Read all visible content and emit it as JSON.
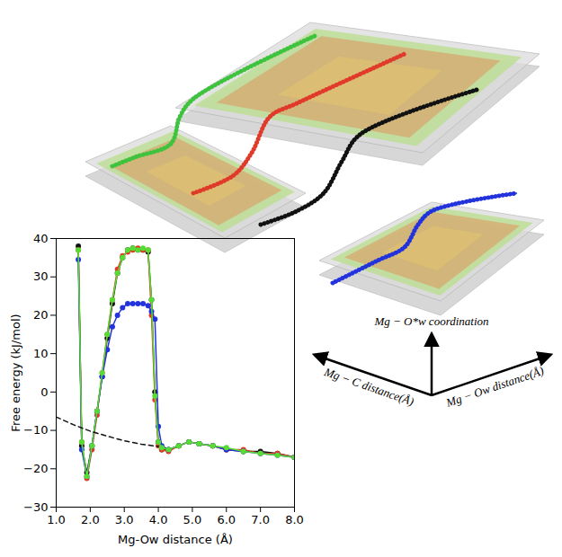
{
  "chart_data": {
    "type": "line",
    "xlabel": "Mg-Ow distance (Å)",
    "ylabel": "Free energy (kJ/mol)",
    "xlim": [
      1,
      8
    ],
    "xticks": [
      1,
      2,
      3,
      4,
      5,
      6,
      7,
      8
    ],
    "ylim": [
      -30,
      40
    ],
    "yticks": [
      -30,
      -20,
      -10,
      0,
      10,
      20,
      30,
      40
    ],
    "grid": false,
    "series": [
      {
        "color": "#111111",
        "marker": "circle",
        "line_style": "solid",
        "x": [
          1.65,
          1.75,
          1.9,
          2.05,
          2.2,
          2.35,
          2.5,
          2.65,
          2.8,
          2.95,
          3.1,
          3.25,
          3.4,
          3.55,
          3.7,
          3.8,
          3.9,
          4.0,
          4.1,
          4.3,
          4.6,
          4.9,
          5.2,
          5.6,
          6.0,
          6.5,
          7.0,
          7.5,
          8.0
        ],
        "values": [
          38,
          -14,
          -21,
          -14,
          -5,
          4,
          14,
          23,
          31,
          35,
          37,
          37.5,
          37,
          37,
          36.5,
          24,
          0,
          -13,
          -15,
          -15,
          -14,
          -13,
          -13.5,
          -14,
          -15,
          -15.5,
          -15.5,
          -16,
          -17
        ]
      },
      {
        "color": "#e03a2a",
        "marker": "circle",
        "line_style": "solid",
        "x": [
          1.65,
          1.75,
          1.9,
          2.05,
          2.2,
          2.35,
          2.5,
          2.65,
          2.8,
          2.95,
          3.1,
          3.25,
          3.4,
          3.55,
          3.7,
          3.8,
          3.9,
          4.0,
          4.1,
          4.3,
          4.6,
          4.9,
          5.2,
          5.6,
          6.0,
          6.5,
          7.0,
          7.5,
          8.0
        ],
        "values": [
          37,
          -13,
          -22.5,
          -15,
          -6,
          5,
          15,
          24,
          32,
          35.5,
          36.5,
          37,
          37.5,
          37,
          37,
          20,
          -2,
          -14,
          -15,
          -15.5,
          -14,
          -13,
          -13.5,
          -14,
          -15,
          -15,
          -16,
          -16,
          -17
        ]
      },
      {
        "color": "#2233dd",
        "marker": "circle",
        "line_style": "solid",
        "x": [
          1.65,
          1.75,
          1.9,
          2.05,
          2.2,
          2.35,
          2.5,
          2.65,
          2.8,
          2.95,
          3.1,
          3.25,
          3.4,
          3.55,
          3.7,
          3.8,
          3.9,
          4.0,
          4.1,
          4.3,
          4.6,
          4.9,
          5.2,
          5.6,
          6.0,
          6.5,
          7.0,
          7.5,
          8.0
        ],
        "values": [
          34.5,
          -15,
          -22,
          -14,
          -5,
          4,
          11,
          17,
          20,
          22,
          23,
          23,
          23,
          23,
          22.5,
          21,
          19,
          -9,
          -14,
          -15,
          -14,
          -13,
          -13.5,
          -14,
          -15,
          -15.5,
          -16,
          -16.5,
          -17
        ]
      },
      {
        "color": "#55dd33",
        "marker": "circle",
        "line_style": "solid",
        "x": [
          1.65,
          1.75,
          1.9,
          2.05,
          2.2,
          2.35,
          2.5,
          2.65,
          2.8,
          2.95,
          3.1,
          3.25,
          3.4,
          3.55,
          3.7,
          3.8,
          3.9,
          4.0,
          4.1,
          4.3,
          4.6,
          4.9,
          5.2,
          5.6,
          6.0,
          6.5,
          7.0,
          7.5,
          8.0
        ],
        "values": [
          37,
          -13,
          -22,
          -14,
          -5,
          5,
          15,
          24,
          31,
          35,
          37,
          37.5,
          37,
          37.5,
          37,
          24,
          -1,
          -13,
          -14.5,
          -15,
          -14,
          -13,
          -13.5,
          -14,
          -14.5,
          -15.5,
          -16,
          -16.5,
          -17
        ]
      },
      {
        "color": "#111111",
        "marker": "none",
        "line_style": "dashed",
        "x": [
          1,
          1.5,
          2,
          2.5,
          3,
          3.5,
          4
        ],
        "values": [
          -6.5,
          -8.5,
          -10.2,
          -11.5,
          -12.7,
          -13.6,
          -14.2
        ]
      }
    ]
  },
  "diagram": {
    "axis_labels": {
      "left": "Mg − C distance(Å)",
      "up": "Mg − O*w coordination",
      "right": "Mg − Ow distance(Å)"
    }
  }
}
